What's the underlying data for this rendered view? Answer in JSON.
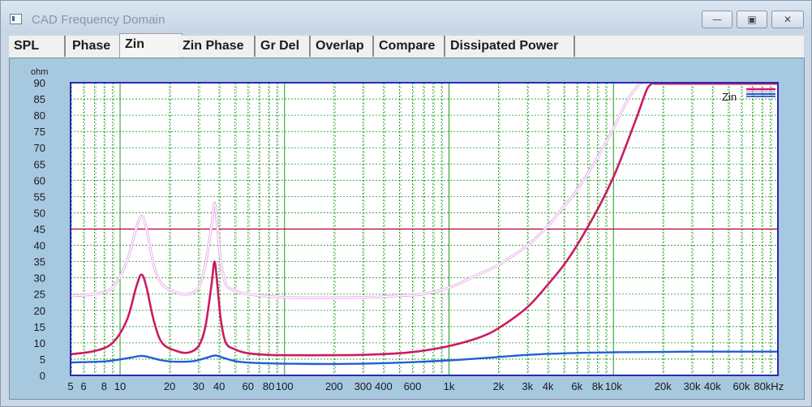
{
  "window": {
    "title": "CAD Frequency Domain",
    "minimize_glyph": "—",
    "maximize_glyph": "▣",
    "close_glyph": "✕"
  },
  "tabs": [
    {
      "label": "SPL",
      "active": false
    },
    {
      "label": "Phase",
      "active": false
    },
    {
      "label": "Zin",
      "active": true
    },
    {
      "label": "Zin Phase",
      "active": false
    },
    {
      "label": "Gr Del",
      "active": false
    },
    {
      "label": "Overlap",
      "active": false
    },
    {
      "label": "Compare",
      "active": false
    },
    {
      "label": "Dissipated Power",
      "active": false
    }
  ],
  "colors": {
    "plot_bg": "#ffffff",
    "plot_frame": "#2a2ab0",
    "grid": "#1f9a1f",
    "marker_line": "#b4001e",
    "series_main": "#cc1a63",
    "series_ghost": "#e7a9e8",
    "series_low": "#1f5fd8",
    "clip_line": "#cc1a63"
  },
  "chart_data": {
    "type": "line",
    "title": "",
    "xlabel": "",
    "ylabel": "ohm",
    "x_scale": "log",
    "xlim": [
      5,
      100000
    ],
    "ylim": [
      0,
      90
    ],
    "grid": true,
    "legend": {
      "label": "Zin",
      "placement": "top-right"
    },
    "x_ticks": [
      {
        "value": 5,
        "label": "5"
      },
      {
        "value": 6,
        "label": "6"
      },
      {
        "value": 8,
        "label": "8"
      },
      {
        "value": 10,
        "label": "10"
      },
      {
        "value": 20,
        "label": "20"
      },
      {
        "value": 30,
        "label": "30"
      },
      {
        "value": 40,
        "label": "40"
      },
      {
        "value": 60,
        "label": "60"
      },
      {
        "value": 80,
        "label": "80"
      },
      {
        "value": 100,
        "label": "100"
      },
      {
        "value": 200,
        "label": "200"
      },
      {
        "value": 300,
        "label": "300"
      },
      {
        "value": 400,
        "label": "400"
      },
      {
        "value": 600,
        "label": "600"
      },
      {
        "value": 1000,
        "label": "1k"
      },
      {
        "value": 2000,
        "label": "2k"
      },
      {
        "value": 3000,
        "label": "3k"
      },
      {
        "value": 4000,
        "label": "4k"
      },
      {
        "value": 6000,
        "label": "6k"
      },
      {
        "value": 8000,
        "label": "8k"
      },
      {
        "value": 10000,
        "label": "10k"
      },
      {
        "value": 20000,
        "label": "20k"
      },
      {
        "value": 30000,
        "label": "30k"
      },
      {
        "value": 40000,
        "label": "40k"
      },
      {
        "value": 60000,
        "label": "60k"
      },
      {
        "value": 80000,
        "label": "80kHz"
      }
    ],
    "y_ticks": [
      0,
      5,
      10,
      15,
      20,
      25,
      30,
      35,
      40,
      45,
      50,
      55,
      60,
      65,
      70,
      75,
      80,
      85,
      90
    ],
    "reference_line": {
      "y": 45
    },
    "series": [
      {
        "role": "main",
        "x": [
          5,
          7,
          9,
          11,
          12.5,
          13.5,
          14.5,
          16,
          18,
          22,
          26,
          30,
          33,
          36,
          37.5,
          39,
          41,
          44,
          50,
          60,
          80,
          100,
          200,
          300,
          500,
          700,
          1000,
          1500,
          2000,
          3000,
          4000,
          5000,
          6000,
          8000,
          10000,
          12000,
          14000,
          16000,
          17500
        ],
        "y": [
          6.5,
          7.5,
          10,
          17,
          27,
          31,
          27,
          17,
          10,
          7.5,
          7,
          9,
          15,
          28,
          35,
          28,
          17,
          10,
          8,
          6.8,
          6.3,
          6.2,
          6.2,
          6.3,
          6.8,
          7.6,
          9,
          11.5,
          14.5,
          21,
          28,
          34,
          40,
          51,
          61,
          71,
          80,
          88,
          90
        ]
      },
      {
        "role": "ghost",
        "x": [
          5,
          7,
          9,
          11,
          12.5,
          13.5,
          14.5,
          16,
          18,
          22,
          26,
          30,
          33,
          36,
          37.5,
          39,
          41,
          44,
          50,
          60,
          100,
          300,
          500,
          700,
          1000,
          1500,
          2000,
          3000,
          4000,
          5000,
          6000,
          8000,
          10000,
          12000,
          14000,
          15000
        ],
        "y": [
          24.5,
          25,
          27,
          35,
          45,
          49,
          45,
          34,
          28,
          25.5,
          25,
          27,
          34,
          46,
          53,
          46,
          35,
          28,
          26,
          25,
          24,
          24,
          24.5,
          25,
          27,
          31,
          34,
          40,
          46,
          52,
          57,
          67,
          76,
          84,
          89,
          90
        ]
      },
      {
        "role": "low",
        "x": [
          5,
          8,
          10,
          12,
          13.5,
          15,
          18,
          22,
          28,
          33,
          38,
          43,
          55,
          100,
          300,
          1000,
          3000,
          6000,
          10000,
          20000,
          30000,
          100000
        ],
        "y": [
          4,
          4.3,
          4.9,
          5.6,
          6,
          5.6,
          4.6,
          4.2,
          4.4,
          5.3,
          6.1,
          5.3,
          4.1,
          3.6,
          3.6,
          4.6,
          6.3,
          6.9,
          7.1,
          7.2,
          7.3,
          7.3
        ]
      }
    ]
  }
}
